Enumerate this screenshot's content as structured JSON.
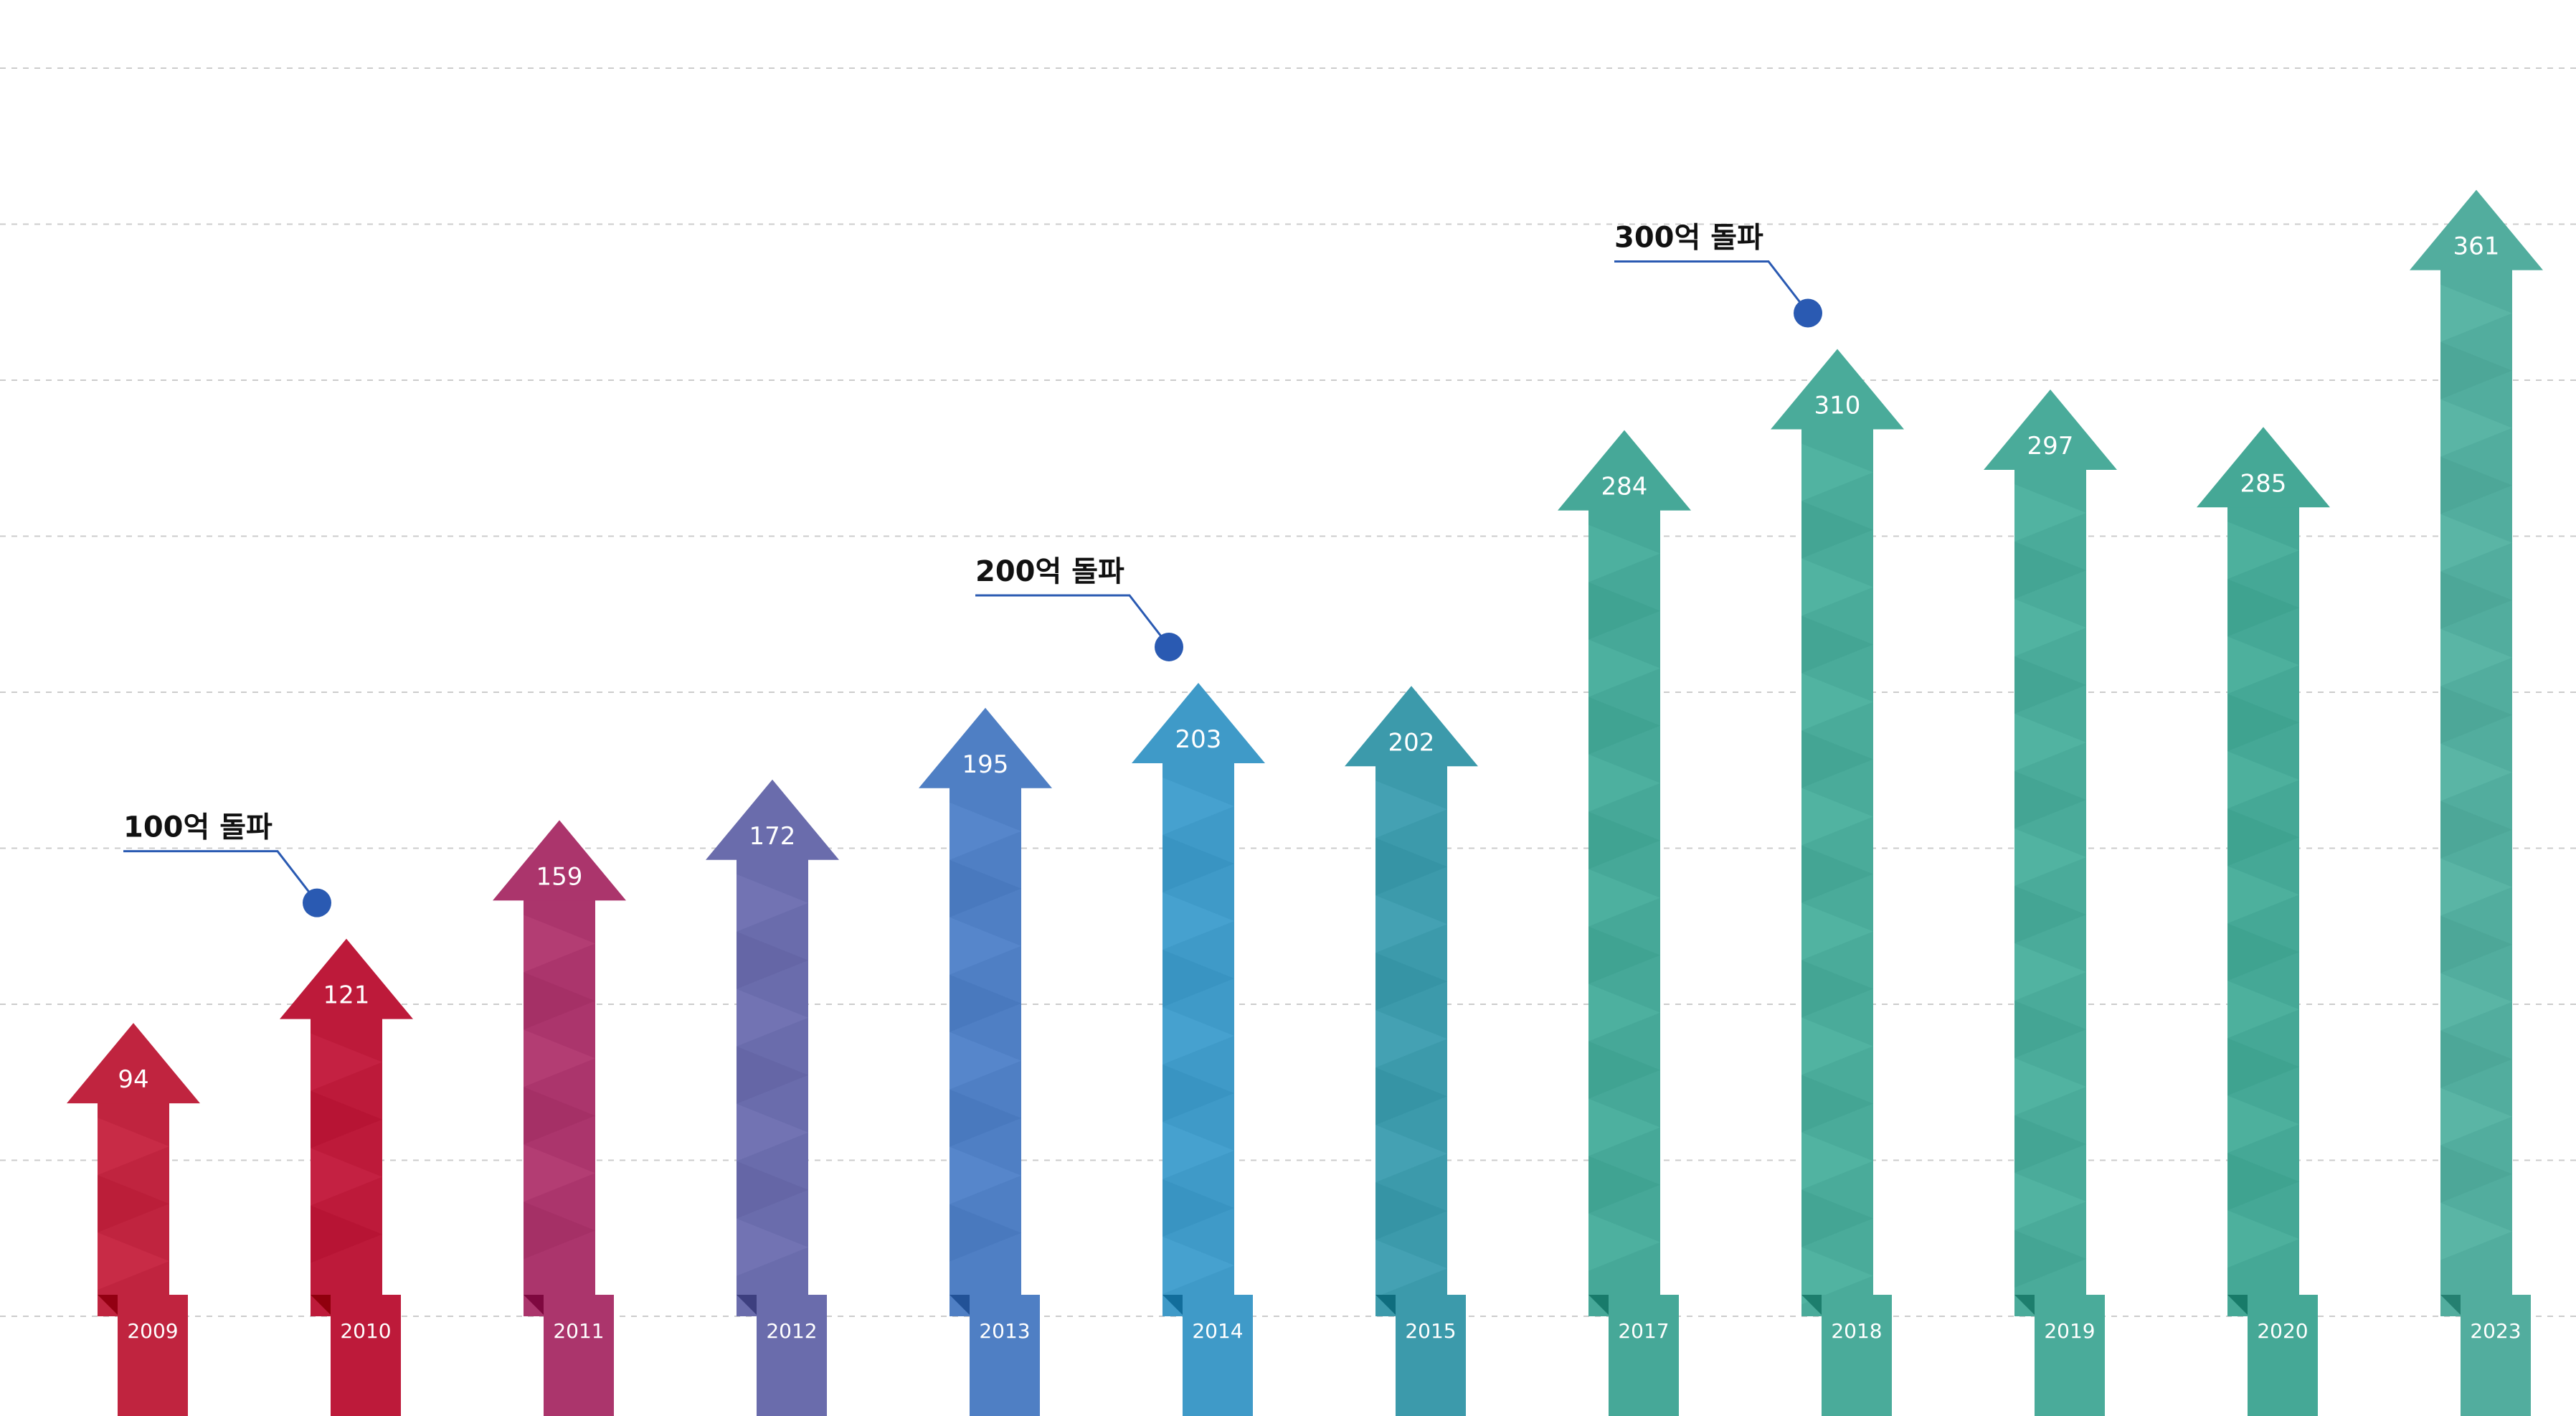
{
  "chart_data": {
    "type": "bar",
    "title": "",
    "xlabel": "",
    "ylabel": "",
    "ylim": [
      0,
      400
    ],
    "grid": true,
    "categories": [
      "2009",
      "2010",
      "2011",
      "2012",
      "2013",
      "2014",
      "2015",
      "2017",
      "2018",
      "2019",
      "2020",
      "2023"
    ],
    "series": [
      {
        "values": [
          94,
          121,
          159,
          172,
          195,
          203,
          202,
          284,
          310,
          297,
          285,
          361
        ]
      }
    ],
    "value_labels": [
      "94",
      "121",
      "159",
      "172",
      "195",
      "203",
      "202",
      "284",
      "310",
      "297",
      "285",
      "361"
    ],
    "colors": [
      "#c0243f",
      "#bd1a3a",
      "#ab356c",
      "#6a6cac",
      "#4f7fc4",
      "#3f9ac8",
      "#3c9aab",
      "#46a898",
      "#4aab9a",
      "#4aab9a",
      "#45a896",
      "#52ad9e"
    ],
    "annotations": [
      {
        "text": "100억 돌파",
        "after_category": "2010"
      },
      {
        "text": "200억 돌파",
        "after_category": "2014"
      },
      {
        "text": "300억 돌파",
        "after_category": "2018"
      }
    ],
    "annotation_color": "#2a5ab2",
    "grid_color": "#cccccc"
  }
}
